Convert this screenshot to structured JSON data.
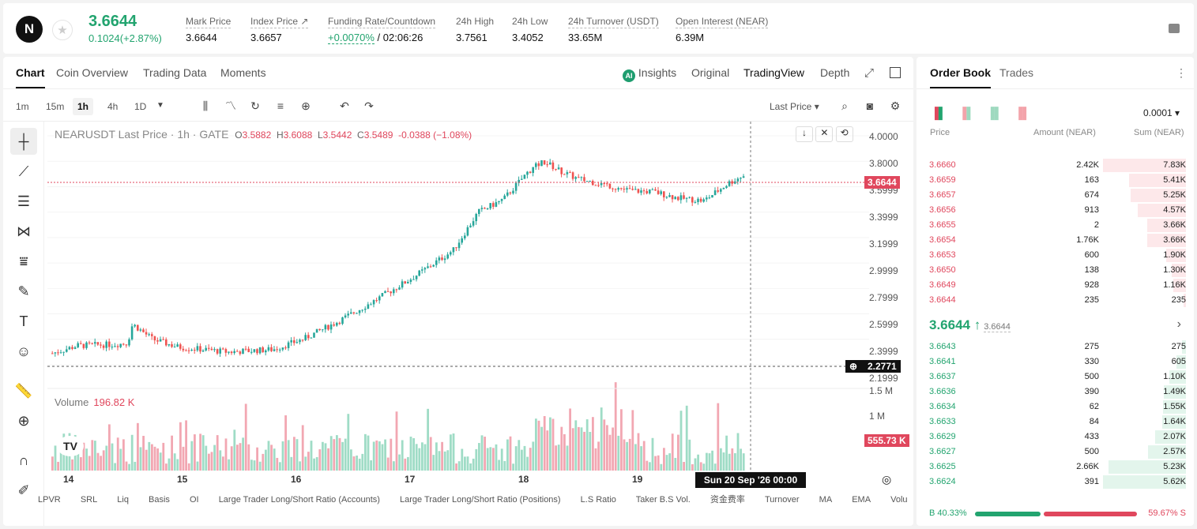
{
  "header": {
    "logo": "N",
    "price": "3.6644",
    "change": "0.1024(+2.87%)",
    "stats": [
      {
        "label": "Mark Price",
        "value": "3.6644"
      },
      {
        "label": "Index Price ↗",
        "value": "3.6657"
      },
      {
        "label": "Funding Rate/Countdown",
        "value": "+0.0070%",
        "value2": "/ 02:06:26"
      },
      {
        "label": "24h High",
        "value": "3.7561"
      },
      {
        "label": "24h Low",
        "value": "3.4052"
      },
      {
        "label": "24h Turnover (USDT)",
        "value": "33.65M"
      },
      {
        "label": "Open Interest (NEAR)",
        "value": "6.39M"
      }
    ]
  },
  "chart": {
    "tabs": [
      "Chart",
      "Coin Overview",
      "Trading Data",
      "Moments"
    ],
    "views": [
      "Insights",
      "Original",
      "TradingView",
      "Depth"
    ],
    "timeframes": [
      "1m",
      "15m",
      "1h",
      "4h",
      "1D"
    ],
    "price_type": "Last Price",
    "legend": {
      "title": "NEARUSDT Last Price · 1h · GATE",
      "o": "O",
      "o_val": "3.5882",
      "h": "H",
      "h_val": "3.6088",
      "l": "L",
      "l_val": "3.5442",
      "c": "C",
      "c_val": "3.5489",
      "chg": "-0.0388 (−1.08%)"
    },
    "y_labels": [
      "4.0000",
      "3.8000",
      "3.5999",
      "3.3999",
      "3.1999",
      "2.9999",
      "2.7999",
      "2.5999",
      "2.3999",
      "2.1999"
    ],
    "current_price_tag": "3.6644",
    "cross_tag": "2.2771",
    "vol_label": "Volume",
    "vol_value": "196.82 K",
    "vol_axis": [
      "1.5 M",
      "1 M"
    ],
    "vol_tag": "555.73 K",
    "x_labels": [
      "14",
      "15",
      "16",
      "17",
      "18",
      "19"
    ],
    "crosshair_time": "Sun 20 Sep '26    00:00",
    "indicators": [
      "LPVR",
      "SRL",
      "Liq",
      "Basis",
      "OI",
      "Large Trader Long/Short Ratio (Accounts)",
      "Large Trader Long/Short Ratio (Positions)",
      "L.S Ratio",
      "Taker B.S Vol.",
      "资金费率",
      "Turnover",
      "MA",
      "EMA",
      "Volu"
    ],
    "colors": {
      "up": "#26a69a",
      "down": "#ef5350"
    }
  },
  "chart_data": {
    "type": "candlestick",
    "series": [
      {
        "name": "NEARUSDT Last Price",
        "y_range": [
          2.15,
          4.05
        ]
      }
    ],
    "ylim": [
      2.15,
      4.05
    ],
    "last": 3.6644
  },
  "orderbook": {
    "tabs": [
      "Order Book",
      "Trades"
    ],
    "tick": "0.0001",
    "headers": [
      "Price",
      "Amount (NEAR)",
      "Sum (NEAR)"
    ],
    "asks": [
      [
        "3.6660",
        "2.42K",
        "7.83K"
      ],
      [
        "3.6659",
        "163",
        "5.41K"
      ],
      [
        "3.6657",
        "674",
        "5.25K"
      ],
      [
        "3.6656",
        "913",
        "4.57K"
      ],
      [
        "3.6655",
        "2",
        "3.66K"
      ],
      [
        "3.6654",
        "1.76K",
        "3.66K"
      ],
      [
        "3.6653",
        "600",
        "1.90K"
      ],
      [
        "3.6650",
        "138",
        "1.30K"
      ],
      [
        "3.6649",
        "928",
        "1.16K"
      ],
      [
        "3.6644",
        "235",
        "235"
      ]
    ],
    "ask_depth": [
      1,
      0.69,
      0.67,
      0.58,
      0.47,
      0.47,
      0.24,
      0.17,
      0.15,
      0.03
    ],
    "mid": "3.6644 ↑",
    "mid_mark": "3.6644",
    "bids": [
      [
        "3.6643",
        "275",
        "275"
      ],
      [
        "3.6641",
        "330",
        "605"
      ],
      [
        "3.6637",
        "500",
        "1.10K"
      ],
      [
        "3.6636",
        "390",
        "1.49K"
      ],
      [
        "3.6634",
        "62",
        "1.55K"
      ],
      [
        "3.6633",
        "84",
        "1.64K"
      ],
      [
        "3.6629",
        "433",
        "2.07K"
      ],
      [
        "3.6627",
        "500",
        "2.57K"
      ],
      [
        "3.6625",
        "2.66K",
        "5.23K"
      ],
      [
        "3.6624",
        "391",
        "5.62K"
      ]
    ],
    "bid_depth": [
      0.05,
      0.11,
      0.2,
      0.27,
      0.28,
      0.29,
      0.37,
      0.46,
      0.93,
      1
    ],
    "buy": "B 40.33%",
    "sell": "59.67% S",
    "buy_ratio": 0.4033
  }
}
